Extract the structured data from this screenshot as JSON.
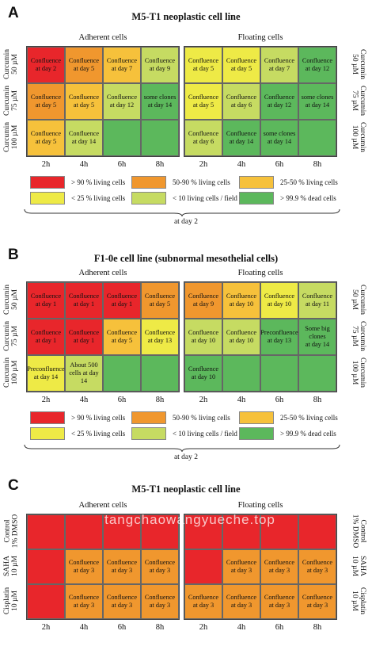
{
  "colors": {
    "red": "#e8262b",
    "orange": "#f0972e",
    "yellow_orange": "#f6c13b",
    "yellow": "#eeea46",
    "lime": "#c6db62",
    "green": "#5cb85c"
  },
  "watermark": "tangchaowangyueche.top",
  "panels": [
    {
      "letter": "A",
      "title": "M5-T1 neoplastic cell line",
      "adherent_label": "Adherent cells",
      "floating_label": "Floating cells",
      "row_labels": [
        "Curcumin\n50 µM",
        "Curcumin\n75 µM",
        "Curcumin\n100 µM"
      ],
      "ticks": [
        "2h",
        "4h",
        "6h",
        "8h"
      ],
      "adherent": [
        [
          {
            "c": "red",
            "t": "Confluence\nat day 2"
          },
          {
            "c": "orange",
            "t": "Confluence\nat day 5"
          },
          {
            "c": "yellow_orange",
            "t": "Confluence\nat day 7"
          },
          {
            "c": "lime",
            "t": "Confluence\nat day 9"
          }
        ],
        [
          {
            "c": "orange",
            "t": "Confluence\nat day 5"
          },
          {
            "c": "yellow_orange",
            "t": "Confluence\nat day 5"
          },
          {
            "c": "lime",
            "t": "Confluence\nat day 12"
          },
          {
            "c": "green",
            "t": "some clones\nat day 14"
          }
        ],
        [
          {
            "c": "yellow_orange",
            "t": "Confluence\nat day 5"
          },
          {
            "c": "lime",
            "t": "Confluence\nat day 14"
          },
          {
            "c": "green",
            "t": ""
          },
          {
            "c": "green",
            "t": ""
          }
        ]
      ],
      "floating": [
        [
          {
            "c": "yellow",
            "t": "Confluence\nat day 5"
          },
          {
            "c": "yellow",
            "t": "Confluence\nat day 5"
          },
          {
            "c": "lime",
            "t": "Confluence\nat day 7"
          },
          {
            "c": "green",
            "t": "Confluence\nat day 12"
          }
        ],
        [
          {
            "c": "yellow",
            "t": "Confluence\nat day 5"
          },
          {
            "c": "lime",
            "t": "Confluence\nat day 6"
          },
          {
            "c": "green",
            "t": "Confluence\nat day 12"
          },
          {
            "c": "green",
            "t": "some clones\nat day 14"
          }
        ],
        [
          {
            "c": "lime",
            "t": "Confluence\nat day 6"
          },
          {
            "c": "green",
            "t": "Confluence\nat day 14"
          },
          {
            "c": "green",
            "t": "some clones\nat day 14"
          },
          {
            "c": "green",
            "t": ""
          }
        ]
      ],
      "legend": [
        {
          "c": "red",
          "t": "> 90 % living cells"
        },
        {
          "c": "orange",
          "t": "50-90 % living cells"
        },
        {
          "c": "yellow_orange",
          "t": "25-50 % living cells"
        },
        {
          "c": "yellow",
          "t": "< 25 % living cells"
        },
        {
          "c": "lime",
          "t": "< 10 living cells / field"
        },
        {
          "c": "green",
          "t": "> 99.9 % dead cells"
        }
      ],
      "brace_label": "at day 2"
    },
    {
      "letter": "B",
      "title": "F1-0e  cell line (subnormal mesothelial cells)",
      "adherent_label": "Adherent cells",
      "floating_label": "Floating cells",
      "row_labels": [
        "Curcumin\n50 µM",
        "Curcumin\n75 µM",
        "Curcumin\n100 µM"
      ],
      "ticks": [
        "2h",
        "4h",
        "6h",
        "8h"
      ],
      "adherent": [
        [
          {
            "c": "red",
            "t": "Confluence\nat day 1"
          },
          {
            "c": "red",
            "t": "Confluence\nat day 1"
          },
          {
            "c": "red",
            "t": "Confluence\nat day 1"
          },
          {
            "c": "orange",
            "t": "Confluence\nat day 5"
          }
        ],
        [
          {
            "c": "red",
            "t": "Confluence\nat day 1"
          },
          {
            "c": "red",
            "t": "Confluence\nat day 1"
          },
          {
            "c": "yellow_orange",
            "t": "Confluence\nat day  5"
          },
          {
            "c": "yellow",
            "t": "Confluence\nat day  13"
          }
        ],
        [
          {
            "c": "yellow",
            "t": "Preconfluence\nat day  14"
          },
          {
            "c": "lime",
            "t": "About 500\ncells at day\n14"
          },
          {
            "c": "green",
            "t": ""
          },
          {
            "c": "green",
            "t": ""
          }
        ]
      ],
      "floating": [
        [
          {
            "c": "orange",
            "t": "Confluence\nat day  9"
          },
          {
            "c": "yellow_orange",
            "t": "Confluence\nat day  10"
          },
          {
            "c": "yellow",
            "t": "Confluence\nat day  10"
          },
          {
            "c": "lime",
            "t": "Confluence\nat day  11"
          }
        ],
        [
          {
            "c": "lime",
            "t": "Confluence\nat day 10"
          },
          {
            "c": "lime",
            "t": "Confluence\nat day  10"
          },
          {
            "c": "green",
            "t": "Preconfluence\nat day  13"
          },
          {
            "c": "green",
            "t": "Some big\nclones\nat day 14"
          }
        ],
        [
          {
            "c": "green",
            "t": "Confluence\nat day 10"
          },
          {
            "c": "green",
            "t": ""
          },
          {
            "c": "green",
            "t": ""
          },
          {
            "c": "green",
            "t": ""
          }
        ]
      ],
      "legend": [
        {
          "c": "red",
          "t": "> 90 % living cells"
        },
        {
          "c": "orange",
          "t": "50-90 % living cells"
        },
        {
          "c": "yellow_orange",
          "t": "25-50 % living cells"
        },
        {
          "c": "yellow",
          "t": "< 25 % living cells"
        },
        {
          "c": "lime",
          "t": "< 10 living cells / field"
        },
        {
          "c": "green",
          "t": "> 99.9 % dead cells"
        }
      ],
      "brace_label": "at day 2"
    },
    {
      "letter": "C",
      "title": "M5-T1 neoplastic cell line",
      "adherent_label": "Adherent cells",
      "floating_label": "Floating cells",
      "row_labels": [
        "Control\n1% DMSO",
        "SAHA\n10 µM",
        "Cisplatin\n10 µM"
      ],
      "ticks": [
        "2h",
        "4h",
        "6h",
        "8h"
      ],
      "adherent": [
        [
          {
            "c": "red",
            "t": ""
          },
          {
            "c": "red",
            "t": ""
          },
          {
            "c": "red",
            "t": ""
          },
          {
            "c": "red",
            "t": ""
          }
        ],
        [
          {
            "c": "red",
            "t": ""
          },
          {
            "c": "orange",
            "t": "Confluence\nat day 3"
          },
          {
            "c": "orange",
            "t": "Confluence\nat day 3"
          },
          {
            "c": "orange",
            "t": "Confluence\nat day 3"
          }
        ],
        [
          {
            "c": "red",
            "t": ""
          },
          {
            "c": "orange",
            "t": "Confluence\nat day 3"
          },
          {
            "c": "orange",
            "t": "Confluence\nat day 3"
          },
          {
            "c": "orange",
            "t": "Confluence\nat day 3"
          }
        ]
      ],
      "floating": [
        [
          {
            "c": "red",
            "t": ""
          },
          {
            "c": "red",
            "t": ""
          },
          {
            "c": "red",
            "t": ""
          },
          {
            "c": "red",
            "t": ""
          }
        ],
        [
          {
            "c": "red",
            "t": ""
          },
          {
            "c": "orange",
            "t": "Confluence\nat day 3"
          },
          {
            "c": "orange",
            "t": "Confluence\nat day 3"
          },
          {
            "c": "orange",
            "t": "Confluence\nat day 3"
          }
        ],
        [
          {
            "c": "orange",
            "t": "Confluence\nat day 3"
          },
          {
            "c": "orange",
            "t": "Confluence\nat day 3"
          },
          {
            "c": "orange",
            "t": "Confluence\nat day 3"
          },
          {
            "c": "orange",
            "t": "Confluence\nat day 3"
          }
        ]
      ]
    }
  ]
}
